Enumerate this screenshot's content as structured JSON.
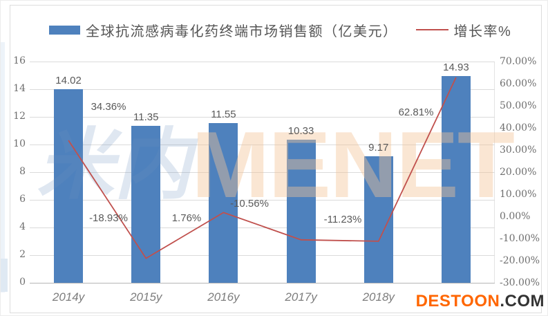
{
  "legend": {
    "bar_label": "全球抗流感病毒化药终端市场销售额（亿美元）",
    "line_label": "增长率%"
  },
  "chart_data": {
    "type": "bar+line",
    "categories": [
      "2014y",
      "2015y",
      "2016y",
      "2017y",
      "2018y",
      ""
    ],
    "series": [
      {
        "name": "全球抗流感病毒化药终端市场销售额（亿美元）",
        "type": "bar",
        "axis": "left",
        "color": "#4e81bd",
        "values": [
          14.02,
          11.35,
          11.55,
          10.33,
          9.17,
          14.93
        ],
        "labels": [
          "14.02",
          "11.35",
          "11.55",
          "10.33",
          "9.17",
          "14.93"
        ]
      },
      {
        "name": "增长率%",
        "type": "line",
        "axis": "right",
        "color": "#c0504d",
        "values": [
          34.36,
          -18.93,
          1.76,
          -10.56,
          -11.23,
          62.81
        ],
        "labels": [
          "34.36%",
          "-18.93%",
          "1.76%",
          "-10.56%",
          "-11.23%",
          "62.81%"
        ]
      }
    ],
    "left_axis": {
      "min": 0,
      "max": 16,
      "step": 2,
      "tick_labels": [
        "0",
        "2",
        "4",
        "6",
        "8",
        "10",
        "12",
        "14",
        "16"
      ]
    },
    "right_axis": {
      "min": -30,
      "max": 70,
      "step": 10,
      "tick_labels": [
        "70.00%",
        "60.00%",
        "50.00%",
        "40.00%",
        "30.00%",
        "20.00%",
        "10.00%",
        "0.00%",
        "-10.00%",
        "-20.00%",
        "-30.00%"
      ]
    },
    "grid": true,
    "legend_position": "top"
  },
  "watermarks": {
    "center_cn": "米内",
    "center_en": "MENET",
    "bottom_right_name": "DESTOON",
    "bottom_right_suffix": ".COM"
  },
  "colors": {
    "bar": "#4e81bd",
    "line": "#c0504d",
    "grid": "#dadada",
    "axis_text": "#6e6e6e",
    "value_text": "#595959",
    "destoon_orange": "#ff6600",
    "destoon_dark": "#333333"
  }
}
